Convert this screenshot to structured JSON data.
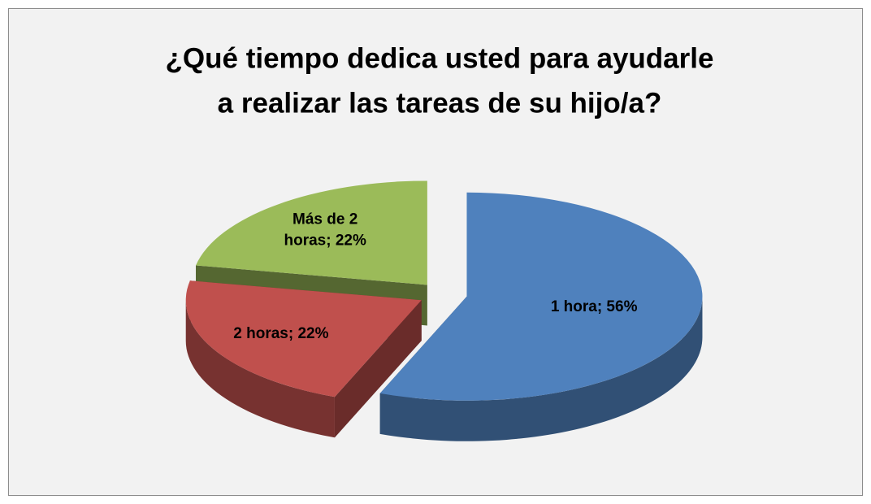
{
  "chart_data": {
    "type": "pie3d",
    "title": "¿Qué tiempo dedica usted para ayudarle a realizar las tareas de su hijo/a?",
    "categories": [
      "1 hora",
      "2 horas",
      "Más de 2 horas"
    ],
    "values": [
      56,
      22,
      22
    ],
    "value_labels": [
      "1 hora; 56%",
      "2 horas; 22%",
      "Más de 2 horas; 22%"
    ],
    "colors": [
      "#4f81bd",
      "#c0504d",
      "#9bbb59"
    ]
  }
}
